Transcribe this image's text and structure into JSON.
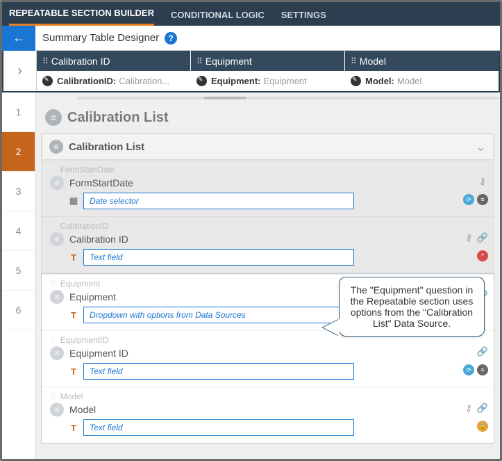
{
  "topTabs": {
    "builder": "REPEATABLE SECTION BUILDER",
    "logic": "CONDITIONAL LOGIC",
    "settings": "SETTINGS"
  },
  "subbar": {
    "title": "Summary Table Designer"
  },
  "summaryCols": [
    {
      "header": "Calibration ID",
      "fieldName": "CalibrationID:",
      "fieldValue": "Calibration..."
    },
    {
      "header": "Equipment",
      "fieldName": "Equipment:",
      "fieldValue": "Equipment"
    },
    {
      "header": "Model",
      "fieldName": "Model:",
      "fieldValue": "Model"
    }
  ],
  "leftNums": [
    "1",
    "2",
    "3",
    "4",
    "5",
    "6"
  ],
  "activeNum": 1,
  "section": {
    "title": "Calibration List",
    "listHeader": "Calibration List"
  },
  "questions": [
    {
      "code": "FormStartDate",
      "label": "FormStartDate",
      "typeIcon": "cal",
      "placeholder": "Date selector",
      "rightIcons1": [
        "tree"
      ],
      "rightIcons2": [
        "blue",
        "dark"
      ],
      "bg": "gray"
    },
    {
      "code": "CalibrationID",
      "label": "Calibration ID",
      "typeIcon": "T",
      "placeholder": "Text field",
      "rightIcons1": [
        "tree",
        "link"
      ],
      "rightIcons2": [
        "red"
      ],
      "bg": "gray"
    },
    {
      "code": "Equipment",
      "label": "Equipment",
      "typeIcon": "T",
      "placeholder": "Dropdown with options from Data Sources",
      "rightIcons1": [
        "tab",
        "tree",
        "link"
      ],
      "rightIcons2": [],
      "bg": "white"
    },
    {
      "code": "EquipmentID",
      "label": "Equipment ID",
      "typeIcon": "T",
      "placeholder": "Text field",
      "rightIcons1": [
        "link"
      ],
      "rightIcons2": [
        "blue",
        "dark"
      ],
      "bg": "white"
    },
    {
      "code": "Model",
      "label": "Model",
      "typeIcon": "T",
      "placeholder": "Text field",
      "rightIcons1": [
        "tree",
        "link"
      ],
      "rightIcons2": [
        "orange"
      ],
      "bg": "white"
    }
  ],
  "callout": "The \"Equipment\" question in the Repeatable section uses options from the \"Calibration List\" Data Source."
}
